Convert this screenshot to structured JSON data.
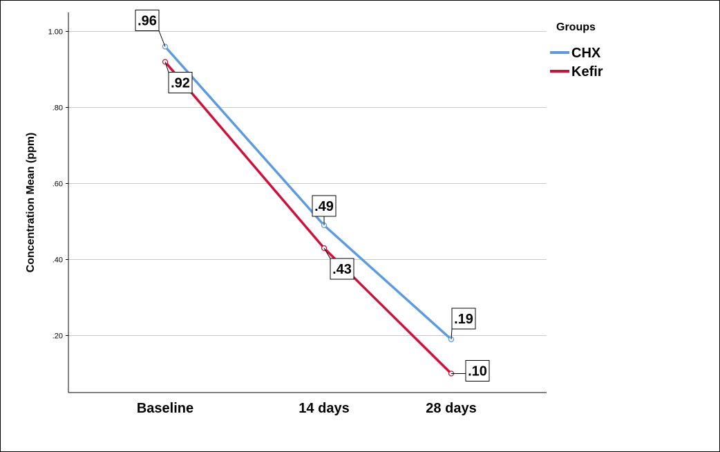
{
  "chart_data": {
    "type": "line",
    "categories": [
      "Baseline",
      "14 days",
      "28 days"
    ],
    "ylabel": "Concentration Mean (ppm)",
    "xlabel": "",
    "ylim": [
      0.05,
      1.05
    ],
    "yticks": [
      0.2,
      0.4,
      0.6,
      0.8,
      1.0
    ],
    "ytick_labels": [
      ".20",
      ".40",
      ".60",
      ".80",
      "1.00"
    ],
    "grid": true,
    "legend": {
      "title": "Groups",
      "position": "top-right"
    },
    "series": [
      {
        "name": "CHX",
        "color": "#5b9be0",
        "values": [
          0.96,
          0.49,
          0.19
        ],
        "labels": [
          ".96",
          ".49",
          ".19"
        ]
      },
      {
        "name": "Kefir",
        "color": "#d0103a",
        "values": [
          0.92,
          0.43,
          0.1
        ],
        "labels": [
          ".92",
          ".43",
          ".10"
        ]
      }
    ]
  }
}
